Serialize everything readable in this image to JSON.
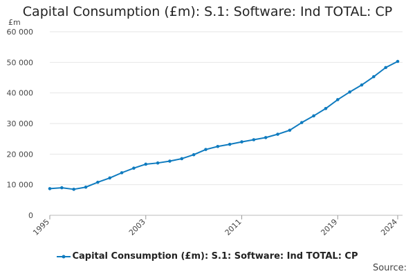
{
  "chart_data": {
    "type": "line",
    "title": "Capital Consumption (£m): S.1: Software: Ind TOTAL: CP",
    "y_unit": "£m",
    "xlabel": "",
    "ylabel": "",
    "x": [
      1995,
      1996,
      1997,
      1998,
      1999,
      2000,
      2001,
      2002,
      2003,
      2004,
      2005,
      2006,
      2007,
      2008,
      2009,
      2010,
      2011,
      2012,
      2013,
      2014,
      2015,
      2016,
      2017,
      2018,
      2019,
      2020,
      2021,
      2022,
      2023,
      2024
    ],
    "x_ticks": [
      "1995",
      "2003",
      "2011",
      "2019",
      "2024"
    ],
    "y_ticks": [
      "0",
      "10 000",
      "20 000",
      "30 000",
      "40 000",
      "50 000",
      "60 000"
    ],
    "ylim": [
      0,
      60000
    ],
    "grid": true,
    "series": [
      {
        "name": "Capital Consumption (£m): S.1: Software: Ind TOTAL: CP",
        "color": "#0f7bbf",
        "values": [
          8700,
          9000,
          8500,
          9200,
          10800,
          12200,
          13900,
          15400,
          16700,
          17100,
          17700,
          18500,
          19800,
          21500,
          22500,
          23200,
          24000,
          24700,
          25400,
          26500,
          27800,
          30300,
          32500,
          34900,
          37800,
          40300,
          42600,
          45300,
          48300,
          50300
        ]
      }
    ],
    "legend_position": "bottom",
    "source_label": "Source:"
  }
}
